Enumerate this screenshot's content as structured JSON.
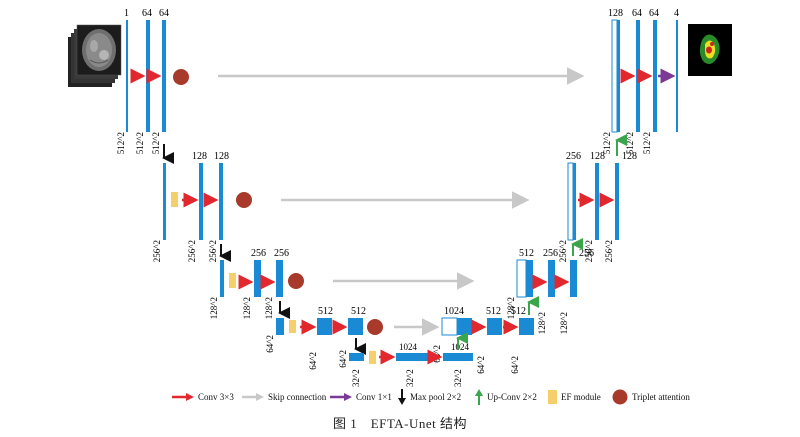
{
  "figure": {
    "caption": "图 1　EFTA-Unet 结构"
  },
  "levels": {
    "l1": {
      "enc_channels": [
        "1",
        "64",
        "64"
      ],
      "enc_size": "512^2",
      "dec_channels": [
        "128",
        "64",
        "64",
        "4"
      ],
      "dec_size": "512^2"
    },
    "l2": {
      "enc_channels": [
        "128",
        "128"
      ],
      "enc_size": "256^2",
      "dec_channels": [
        "256",
        "128",
        "128"
      ],
      "dec_size": "256^2"
    },
    "l3": {
      "enc_channels": [
        "256",
        "256"
      ],
      "enc_size": "128^2",
      "dec_channels": [
        "512",
        "256",
        "256"
      ],
      "dec_size": "128^2"
    },
    "l4": {
      "enc_channels": [
        "512",
        "512"
      ],
      "enc_size": "64^2",
      "dec_channels": [
        "1024",
        "512",
        "512"
      ],
      "dec_size": "64^2"
    },
    "l5": {
      "channels": [
        "1024",
        "1024"
      ],
      "size": "32^2"
    }
  },
  "legend": {
    "conv3": "Conv 3×3",
    "skip": "Skip connection",
    "conv1": "Conv 1×1",
    "maxpool": "Max pool 2×2",
    "upconv": "Up-Conv 2×2",
    "ef": "EF module",
    "triplet": "Triplet attention"
  },
  "colors": {
    "feature_map": "#1a8ad4",
    "conv3": "#e0282e",
    "skip": "#c8c8c8",
    "conv1": "#7b3a96",
    "maxpool": "#111111",
    "upconv": "#3aa54a",
    "ef": "#f5cf6b",
    "triplet": "#a83a2c"
  }
}
